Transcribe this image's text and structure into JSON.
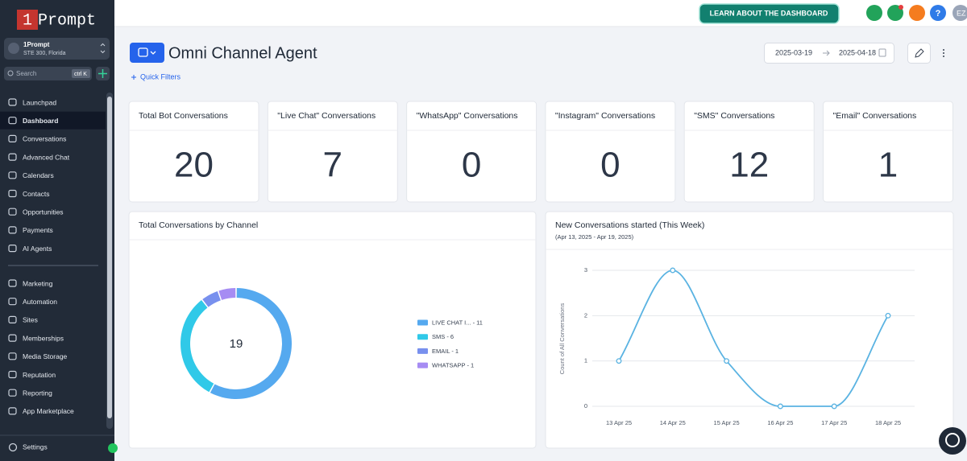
{
  "sidebar": {
    "logo_num": "1",
    "logo_text": "Prompt",
    "account_name": "1Prompt",
    "account_address": "STE 300, Florida",
    "search": "Search",
    "shortcut": "ctrl K",
    "nav": [
      "Launchpad",
      "Dashboard",
      "Conversations",
      "Advanced Chat",
      "Calendars",
      "Contacts",
      "Opportunities",
      "Payments",
      "AI Agents"
    ],
    "nav2": [
      "Marketing",
      "Automation",
      "Sites",
      "Memberships",
      "Media Storage",
      "Reputation",
      "Reporting",
      "App Marketplace"
    ],
    "active": "Dashboard",
    "settings": "Settings"
  },
  "header": {
    "learn": "LEARN ABOUT THE DASHBOARD",
    "help": "?",
    "avatar": "EZ"
  },
  "page": {
    "title": "Omni Channel Agent",
    "quick_filters": "Quick Filters",
    "date_from": "2025-03-19",
    "date_to": "2025-04-18"
  },
  "cards": [
    {
      "label": "Total Bot Conversations",
      "value": 20
    },
    {
      "label": "\"Live Chat\" Conversations",
      "value": 7
    },
    {
      "label": "\"WhatsApp\" Conversations",
      "value": 0
    },
    {
      "label": "\"Instagram\" Conversations",
      "value": 0
    },
    {
      "label": "\"SMS\" Conversations",
      "value": 12
    },
    {
      "label": "\"Email\" Conversations",
      "value": 1
    }
  ],
  "chart_data": [
    {
      "type": "pie",
      "title": "Total Conversations by Channel",
      "total": 19,
      "categories": [
        "LIVE CHAT I...",
        "SMS",
        "EMAIL",
        "WHATSAPP"
      ],
      "legend": [
        "LIVE CHAT I... - 11",
        "SMS - 6",
        "EMAIL - 1",
        "WHATSAPP - 1"
      ],
      "values": [
        11,
        6,
        1,
        1
      ],
      "colors": [
        "#55a9ef",
        "#30c9e8",
        "#7890ee",
        "#a68cf3"
      ]
    },
    {
      "type": "line",
      "title": "New Conversations started (This Week)",
      "subtitle": "(Apr 13, 2025 - Apr 19, 2025)",
      "y_label": "Count of All Conversations",
      "categories": [
        "13 Apr 25",
        "14 Apr 25",
        "15 Apr 25",
        "16 Apr 25",
        "17 Apr 25",
        "18 Apr 25"
      ],
      "values": [
        1,
        3,
        1,
        0,
        0,
        2
      ],
      "color": "#5ab3e2",
      "ylim": [
        0,
        3
      ],
      "yticks": [
        0,
        1,
        2,
        3
      ],
      "grid": true
    }
  ]
}
